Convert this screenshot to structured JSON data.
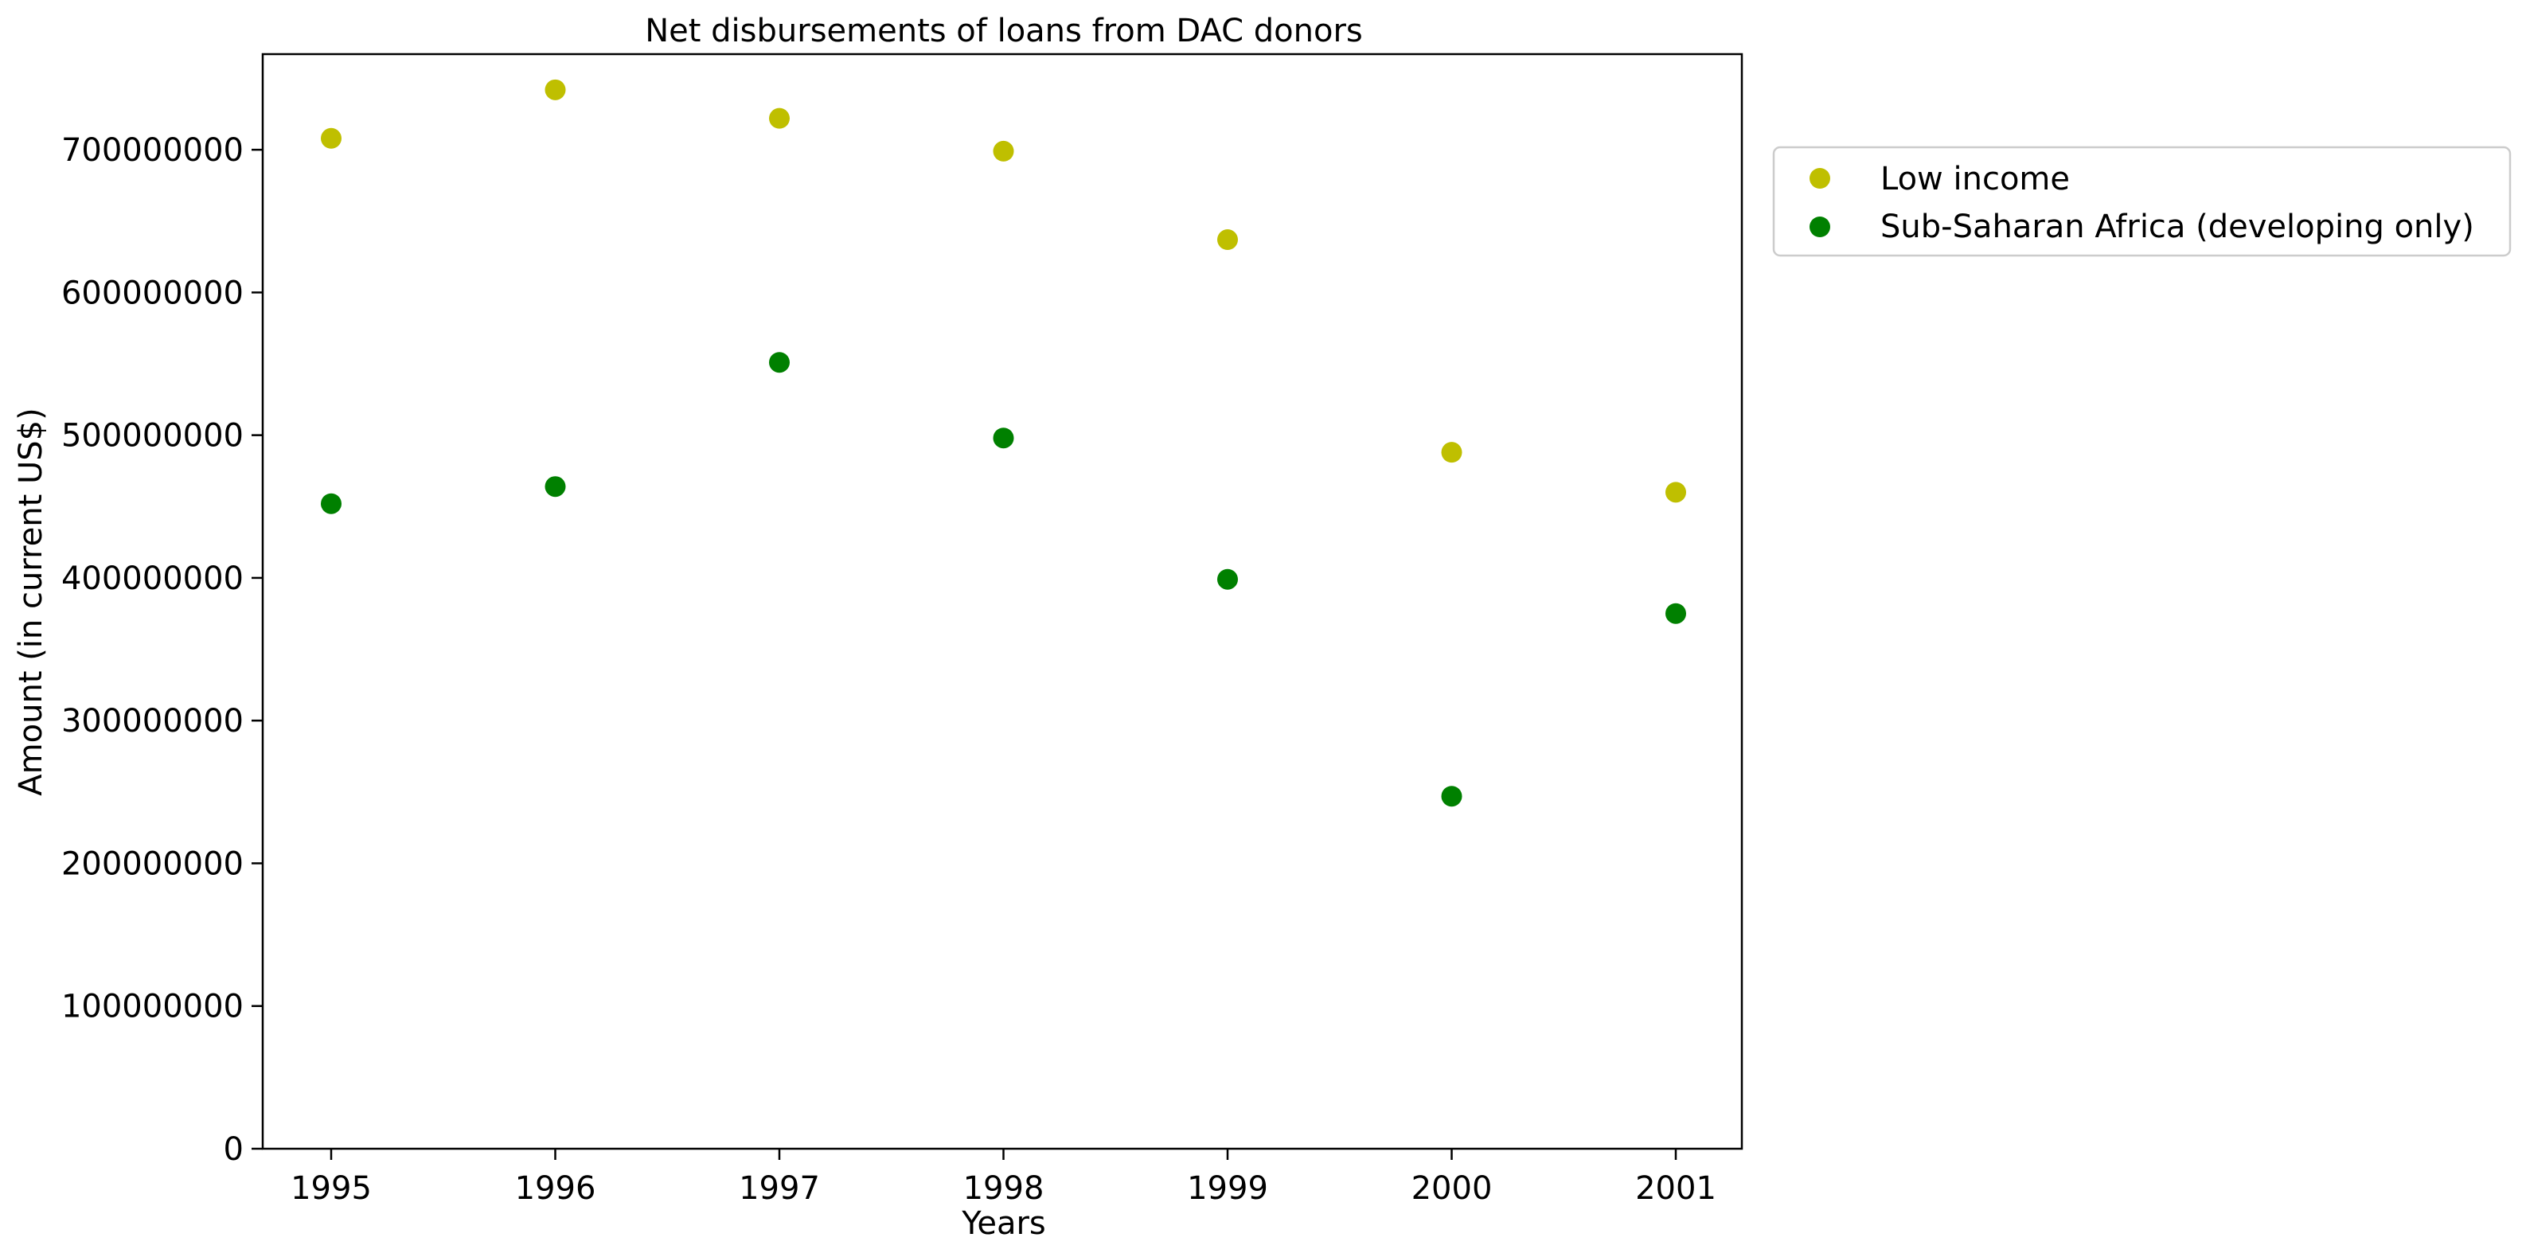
{
  "chart_data": {
    "type": "scatter",
    "title": "Net disbursements of loans from DAC donors",
    "xlabel": "Years",
    "ylabel": "Amount (in current US$)",
    "categories": [
      "1995",
      "1996",
      "1997",
      "1998",
      "1999",
      "2000",
      "2001"
    ],
    "y_ticks": [
      0,
      100000000,
      200000000,
      300000000,
      400000000,
      500000000,
      600000000,
      700000000
    ],
    "y_tick_labels": [
      "0",
      "100000000",
      "200000000",
      "300000000",
      "400000000",
      "500000000",
      "600000000",
      "700000000"
    ],
    "ylim": [
      0,
      767000000
    ],
    "grid": false,
    "legend_position": "outside upper right",
    "series": [
      {
        "name": "Low income",
        "color": "#bfbf00",
        "values": [
          708000000,
          742000000,
          722000000,
          699000000,
          637000000,
          488000000,
          460000000
        ]
      },
      {
        "name": "Sub-Saharan Africa (developing only)",
        "color": "#008000",
        "values": [
          452000000,
          464000000,
          551000000,
          498000000,
          399000000,
          247000000,
          375000000
        ]
      }
    ]
  }
}
